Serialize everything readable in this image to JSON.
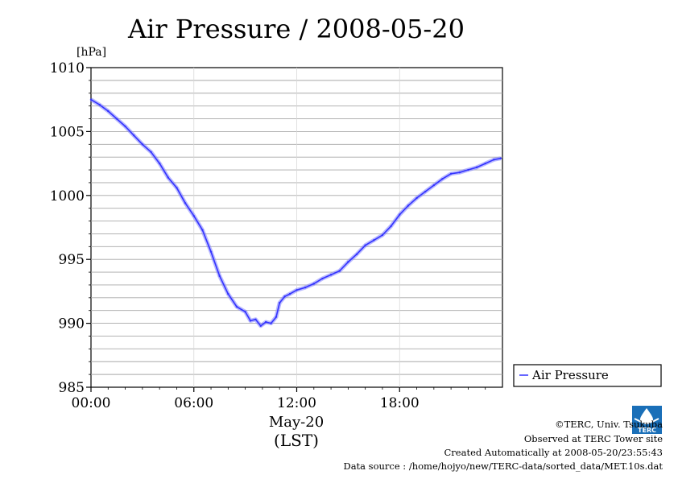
{
  "chart_data": {
    "type": "line",
    "title": "Air Pressure / 2008-05-20",
    "ylabel": "[hPa]",
    "xlabel_date": "May-20",
    "xlabel_zone": "(LST)",
    "ylim": [
      985,
      1010
    ],
    "xlim": [
      0,
      24
    ],
    "yticks": [
      985,
      990,
      995,
      1000,
      1005,
      1010
    ],
    "xtick_labels": [
      "00:00",
      "06:00",
      "12:00",
      "18:00"
    ],
    "xtick_values": [
      0,
      6,
      12,
      18
    ],
    "grid": true,
    "legend_position": "right",
    "series": [
      {
        "name": "Air Pressure",
        "color": "#3333ff",
        "x": [
          0,
          0.5,
          1,
          1.5,
          2,
          2.5,
          3,
          3.5,
          4,
          4.5,
          5,
          5.5,
          6,
          6.5,
          7,
          7.5,
          8,
          8.5,
          9,
          9.3,
          9.6,
          9.9,
          10.2,
          10.5,
          10.8,
          11,
          11.3,
          11.6,
          12,
          12.5,
          13,
          13.5,
          14,
          14.5,
          15,
          15.5,
          16,
          16.5,
          17,
          17.5,
          18,
          18.5,
          19,
          19.5,
          20,
          20.5,
          21,
          21.5,
          22,
          22.5,
          23,
          23.5,
          23.9
        ],
        "y": [
          1007.5,
          1007.1,
          1006.6,
          1006.0,
          1005.4,
          1004.7,
          1004.0,
          1003.4,
          1002.5,
          1001.4,
          1000.6,
          999.4,
          998.4,
          997.3,
          995.6,
          993.7,
          992.3,
          991.3,
          990.9,
          990.2,
          990.3,
          989.8,
          990.1,
          990.0,
          990.5,
          991.6,
          992.1,
          992.3,
          992.6,
          992.8,
          993.1,
          993.5,
          993.8,
          994.1,
          994.8,
          995.4,
          996.1,
          996.5,
          996.9,
          997.6,
          998.5,
          999.2,
          999.8,
          1000.3,
          1000.8,
          1001.3,
          1001.7,
          1001.8,
          1002.0,
          1002.2,
          1002.5,
          1002.8,
          1002.9
        ]
      }
    ]
  },
  "legend": {
    "label": "Air Pressure"
  },
  "footer": {
    "line1": "©TERC, Univ. Tsukuba",
    "line2": "Observed at TERC Tower site",
    "line3": "Created Automatically at 2008-05-20/23:55:43",
    "line4": "Data source : /home/hojyo/new/TERC-data/sorted_data/MET.10s.dat"
  },
  "logo": {
    "text": "TERC",
    "color": "#1a6fb8"
  }
}
